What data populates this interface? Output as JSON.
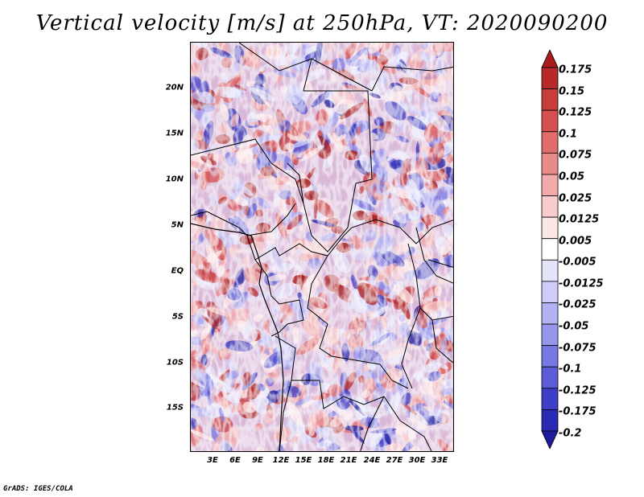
{
  "title": "Vertical velocity [m/s] at 250hPa, VT: 2020090200",
  "credit": "GrADS: IGES/COLA",
  "map": {
    "lat_labels": [
      "20N",
      "15N",
      "10N",
      "5N",
      "EQ",
      "5S",
      "10S",
      "15S"
    ],
    "lon_labels": [
      "3E",
      "6E",
      "9E",
      "12E",
      "15E",
      "18E",
      "21E",
      "24E",
      "27E",
      "30E",
      "33E"
    ]
  },
  "colorbar": {
    "labels": [
      "0.175",
      "0.15",
      "0.125",
      "0.1",
      "0.075",
      "0.05",
      "0.025",
      "0.0125",
      "0.005",
      "-0.005",
      "-0.0125",
      "-0.025",
      "-0.05",
      "-0.075",
      "-0.1",
      "-0.125",
      "-0.175",
      "-0.2"
    ],
    "colors": [
      "#a81c1c",
      "#b82a2a",
      "#c83c3c",
      "#d65050",
      "#e06c6c",
      "#ea8a8a",
      "#f2aaaa",
      "#f8cccc",
      "#fde6e6",
      "#ffffff",
      "#e4e4fb",
      "#cdcdf7",
      "#b2b2f2",
      "#9696ec",
      "#7878e2",
      "#5c5cd6",
      "#3e3ec6",
      "#2a2ab4",
      "#1c1c9c"
    ]
  }
}
